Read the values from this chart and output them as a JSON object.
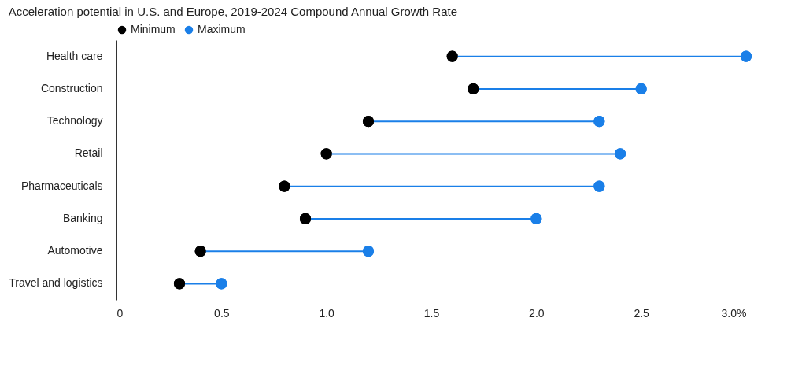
{
  "chart_data": {
    "type": "scatter",
    "orientation": "horizontal",
    "title": "Acceleration potential in U.S. and Europe, 2019-2024 Compound Annual Growth Rate",
    "categories": [
      "Health care",
      "Construction",
      "Technology",
      "Retail",
      "Pharmaceuticals",
      "Banking",
      "Automotive",
      "Travel and logistics"
    ],
    "series": [
      {
        "name": "Minimum",
        "color": "#000000",
        "values": [
          1.6,
          1.7,
          1.2,
          1.0,
          0.8,
          0.9,
          0.4,
          0.3
        ]
      },
      {
        "name": "Maximum",
        "color": "#1a7fe8",
        "values": [
          3.0,
          2.5,
          2.3,
          2.4,
          2.3,
          2.0,
          1.2,
          0.5
        ]
      }
    ],
    "xlim": [
      0,
      3
    ],
    "xticks": [
      0,
      0.5,
      {
        "value": 1,
        "label": "1.0"
      },
      1.5,
      {
        "value": 2,
        "label": "2.0"
      },
      2.5,
      {
        "value": 3,
        "label": "3.0%"
      }
    ],
    "legend": "top left",
    "grid": false,
    "marker": "circle"
  }
}
